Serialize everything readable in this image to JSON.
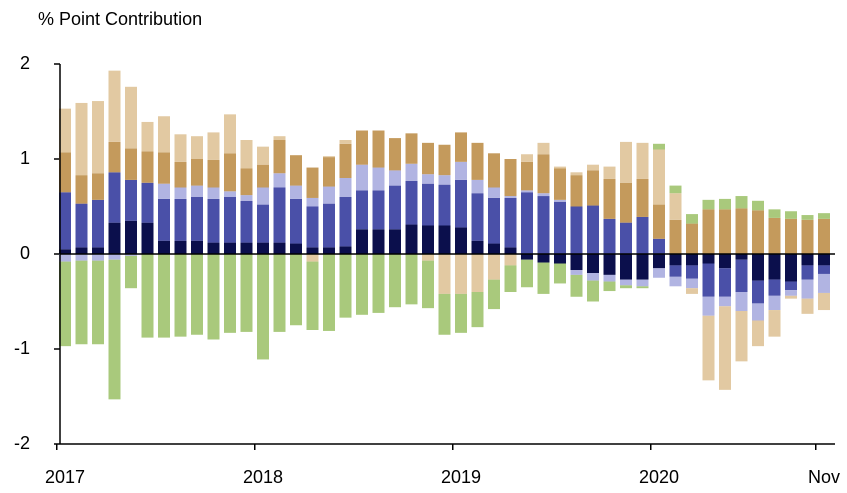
{
  "chart_data": {
    "type": "stacked-bar",
    "y_label": "% Point Contribution",
    "categories": [
      "2017",
      null,
      null,
      null,
      null,
      null,
      null,
      null,
      null,
      null,
      null,
      null,
      "2018",
      null,
      null,
      null,
      null,
      null,
      null,
      null,
      null,
      null,
      null,
      null,
      "2019",
      null,
      null,
      null,
      null,
      null,
      null,
      null,
      null,
      null,
      null,
      null,
      "2020",
      null,
      null,
      null,
      null,
      null,
      null,
      null,
      null,
      null,
      "Nov"
    ],
    "series": [
      {
        "color": "#0b0f4c",
        "values": [
          0.05,
          0.07,
          0.07,
          0.33,
          0.35,
          0.33,
          0.14,
          0.14,
          0.14,
          0.12,
          0.12,
          0.12,
          0.12,
          0.12,
          0.11,
          0.07,
          0.07,
          0.08,
          0.26,
          0.26,
          0.26,
          0.31,
          0.3,
          0.3,
          0.28,
          0.14,
          0.11,
          0.07,
          -0.06,
          -0.09,
          -0.1,
          -0.17,
          -0.2,
          -0.22,
          -0.27,
          -0.27,
          -0.15,
          -0.12,
          -0.12,
          -0.1,
          -0.15,
          -0.06,
          -0.28,
          -0.27,
          -0.29,
          -0.12,
          -0.12
        ]
      },
      {
        "color": "#4a50a8",
        "values": [
          0.6,
          0.46,
          0.5,
          0.53,
          0.43,
          0.42,
          0.44,
          0.44,
          0.46,
          0.46,
          0.48,
          0.44,
          0.4,
          0.58,
          0.47,
          0.43,
          0.46,
          0.52,
          0.41,
          0.41,
          0.46,
          0.46,
          0.44,
          0.43,
          0.5,
          0.5,
          0.48,
          0.52,
          0.65,
          0.61,
          0.55,
          0.5,
          0.51,
          0.37,
          0.33,
          0.39,
          0.16,
          -0.12,
          -0.14,
          -0.35,
          -0.3,
          -0.34,
          -0.24,
          -0.17,
          -0.09,
          -0.15,
          -0.09
        ]
      },
      {
        "color": "#b1b4e2",
        "values": [
          -0.08,
          -0.07,
          -0.07,
          -0.06,
          -0.02,
          0,
          0.16,
          0.12,
          0.12,
          0.12,
          0.06,
          0.06,
          0.18,
          0.15,
          0.14,
          0.09,
          0.18,
          0.2,
          0.27,
          0.24,
          0.16,
          0.18,
          0.1,
          0.1,
          0.19,
          0.14,
          0.11,
          0.02,
          0.02,
          0.03,
          0.02,
          -0.05,
          -0.08,
          -0.07,
          -0.06,
          -0.07,
          -0.1,
          -0.1,
          -0.1,
          -0.2,
          -0.1,
          -0.2,
          -0.18,
          -0.15,
          -0.06,
          -0.2,
          -0.2
        ]
      },
      {
        "color": "#c49a5c",
        "values": [
          0.42,
          0.3,
          0.28,
          0.32,
          0.33,
          0.33,
          0.33,
          0.27,
          0.28,
          0.29,
          0.4,
          0.28,
          0.24,
          0.35,
          0.32,
          0.32,
          0.31,
          0.36,
          0.36,
          0.39,
          0.34,
          0.32,
          0.33,
          0.32,
          0.31,
          0.39,
          0.36,
          0.39,
          0.3,
          0.41,
          0.33,
          0.33,
          0.37,
          0.42,
          0.42,
          0.4,
          0.36,
          0.36,
          0.32,
          0.47,
          0.47,
          0.48,
          0.46,
          0.38,
          0.37,
          0.36,
          0.37
        ]
      },
      {
        "color": "#e2c9a2",
        "values": [
          0.46,
          0.76,
          0.76,
          0.75,
          0.65,
          0.31,
          0.38,
          0.29,
          0.24,
          0.29,
          0.41,
          0.3,
          0.19,
          0.04,
          0,
          -0.08,
          0.01,
          0.04,
          0,
          0,
          0,
          0,
          -0.07,
          -0.42,
          -0.42,
          -0.4,
          -0.27,
          -0.12,
          0.08,
          0.12,
          0.02,
          0.03,
          0.06,
          0.13,
          0.43,
          0.38,
          0.58,
          0.28,
          -0.06,
          -0.68,
          -0.88,
          -0.53,
          -0.27,
          -0.28,
          -0.03,
          -0.16,
          -0.18
        ]
      },
      {
        "color": "#a9c97c",
        "values": [
          -0.89,
          -0.88,
          -0.88,
          -1.47,
          -0.34,
          -0.88,
          -0.88,
          -0.87,
          -0.85,
          -0.9,
          -0.83,
          -0.82,
          -1.11,
          -0.82,
          -0.75,
          -0.72,
          -0.81,
          -0.67,
          -0.64,
          -0.62,
          -0.56,
          -0.53,
          -0.5,
          -0.43,
          -0.41,
          -0.37,
          -0.31,
          -0.28,
          -0.29,
          -0.33,
          -0.21,
          -0.23,
          -0.22,
          -0.1,
          -0.03,
          -0.02,
          0.06,
          0.08,
          0.1,
          0.1,
          0.11,
          0.13,
          0.1,
          0.09,
          0.08,
          0.05,
          0.06
        ]
      }
    ],
    "ylim": [
      -2,
      2
    ],
    "yticks": [
      2,
      1,
      0,
      -1,
      -2
    ]
  }
}
